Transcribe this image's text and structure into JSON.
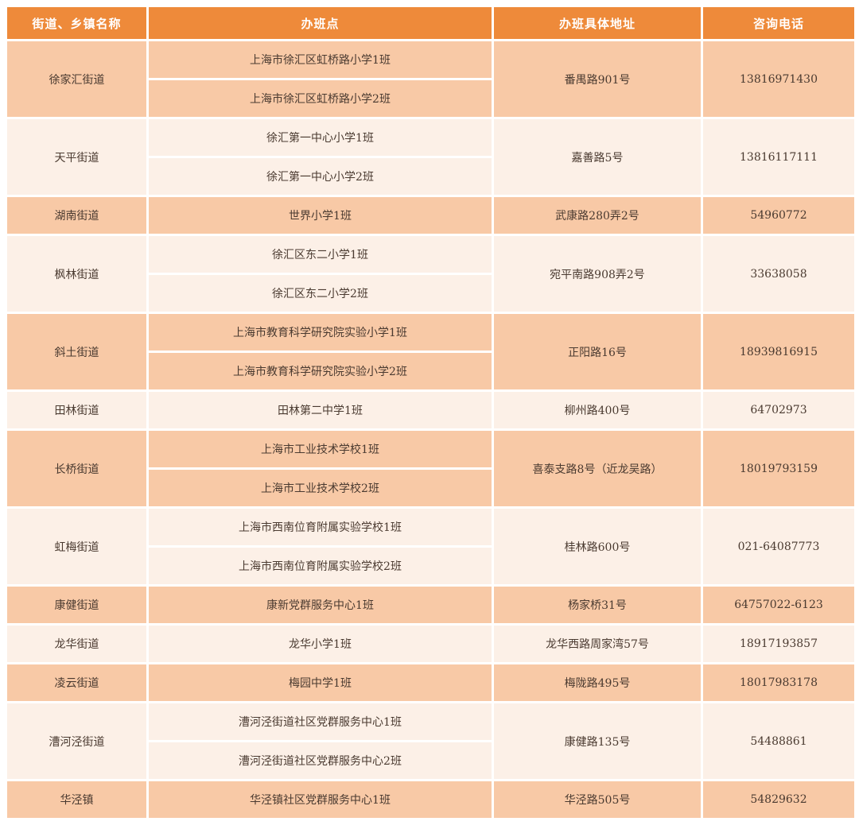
{
  "colors": {
    "header": "#ee8a3a",
    "row_dark": "#f8c9a6",
    "row_light": "#fcf0e7"
  },
  "headers": [
    "街道、乡镇名称",
    "办班点",
    "办班具体地址",
    "咨询电话"
  ],
  "groups": [
    {
      "street": "徐家汇街道",
      "classes": [
        "上海市徐汇区虹桥路小学1班",
        "上海市徐汇区虹桥路小学2班"
      ],
      "address": "番禺路901号",
      "phone": "13816971430"
    },
    {
      "street": "天平街道",
      "classes": [
        "徐汇第一中心小学1班",
        "徐汇第一中心小学2班"
      ],
      "address": "嘉善路5号",
      "phone": "13816117111"
    },
    {
      "street": "湖南街道",
      "classes": [
        "世界小学1班"
      ],
      "address": "武康路280弄2号",
      "phone": "54960772"
    },
    {
      "street": "枫林街道",
      "classes": [
        "徐汇区东二小学1班",
        "徐汇区东二小学2班"
      ],
      "address": "宛平南路908弄2号",
      "phone": "33638058"
    },
    {
      "street": "斜土街道",
      "classes": [
        "上海市教育科学研究院实验小学1班",
        "上海市教育科学研究院实验小学2班"
      ],
      "address": "正阳路16号",
      "phone": "18939816915"
    },
    {
      "street": "田林街道",
      "classes": [
        "田林第二中学1班"
      ],
      "address": "柳州路400号",
      "phone": "64702973"
    },
    {
      "street": "长桥街道",
      "classes": [
        "上海市工业技术学校1班",
        "上海市工业技术学校2班"
      ],
      "address": "喜泰支路8号（近龙吴路）",
      "phone": "18019793159"
    },
    {
      "street": "虹梅街道",
      "classes": [
        "上海市西南位育附属实验学校1班",
        "上海市西南位育附属实验学校2班"
      ],
      "address": "桂林路600号",
      "phone": "021-64087773"
    },
    {
      "street": "康健街道",
      "classes": [
        "康新党群服务中心1班"
      ],
      "address": "杨家桥31号",
      "phone": "64757022-6123"
    },
    {
      "street": "龙华街道",
      "classes": [
        "龙华小学1班"
      ],
      "address": "龙华西路周家湾57号",
      "phone": "18917193857"
    },
    {
      "street": "凌云街道",
      "classes": [
        "梅园中学1班"
      ],
      "address": "梅陇路495号",
      "phone": "18017983178"
    },
    {
      "street": "漕河泾街道",
      "classes": [
        "漕河泾街道社区党群服务中心1班",
        "漕河泾街道社区党群服务中心2班"
      ],
      "address": "康健路135号",
      "phone": "54488861"
    },
    {
      "street": "华泾镇",
      "classes": [
        "华泾镇社区党群服务中心1班"
      ],
      "address": "华泾路505号",
      "phone": "54829632"
    }
  ]
}
